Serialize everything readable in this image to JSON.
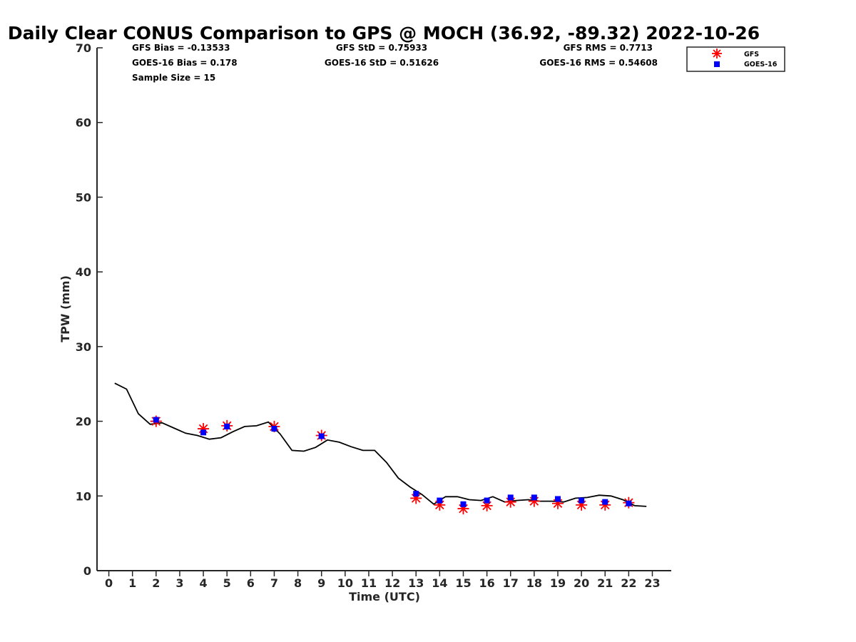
{
  "chart_data": {
    "type": "line",
    "title": "Daily Clear CONUS Comparison to GPS @ MOCH (36.92, -89.32) 2022-10-26",
    "xlabel": "Time (UTC)",
    "ylabel": "TPW (mm)",
    "xlim": [
      -0.5,
      23.8
    ],
    "ylim": [
      0,
      70
    ],
    "xticks": [
      0,
      1,
      2,
      3,
      4,
      5,
      6,
      7,
      8,
      9,
      10,
      11,
      12,
      13,
      14,
      15,
      16,
      17,
      18,
      19,
      20,
      21,
      22,
      23
    ],
    "yticks": [
      0,
      10,
      20,
      30,
      40,
      50,
      60,
      70
    ],
    "grid": false,
    "legend_position": "top-right",
    "stats": {
      "gfs_bias": "GFS Bias = -0.13533",
      "goes_bias": "GOES-16 Bias = 0.178",
      "sample_size": "Sample Size = 15",
      "gfs_std": "GFS StD = 0.75933",
      "goes_std": "GOES-16 StD = 0.51626",
      "gfs_rms": "GFS RMS = 0.7713",
      "goes_rms": "GOES-16 RMS = 0.54608"
    },
    "series": [
      {
        "type": "line",
        "color": "#000000",
        "x": [
          0.25,
          0.75,
          1.25,
          1.75,
          2.25,
          2.75,
          3.25,
          3.75,
          4.25,
          4.75,
          5.25,
          5.75,
          6.25,
          6.75,
          7.25,
          7.75,
          8.25,
          8.75,
          9.25,
          9.75,
          10.25,
          10.75,
          11.25,
          11.75,
          12.25,
          12.75,
          13.25,
          13.75,
          14.25,
          14.75,
          15.25,
          15.75,
          16.25,
          16.75,
          17.25,
          17.75,
          18.25,
          18.75,
          19.25,
          19.75,
          20.25,
          20.75,
          21.25,
          21.75,
          22.25,
          22.75
        ],
        "y": [
          25.1,
          24.3,
          21.0,
          19.6,
          19.8,
          19.1,
          18.4,
          18.1,
          17.6,
          17.8,
          18.6,
          19.3,
          19.4,
          19.9,
          18.3,
          16.1,
          16.0,
          16.5,
          17.5,
          17.2,
          16.6,
          16.1,
          16.1,
          14.5,
          12.4,
          11.2,
          10.2,
          8.9,
          9.9,
          9.9,
          9.5,
          9.4,
          9.9,
          9.2,
          9.4,
          9.5,
          9.3,
          9.3,
          9.2,
          9.7,
          9.8,
          10.1,
          10.0,
          9.5,
          8.7,
          8.6
        ]
      },
      {
        "name": "GFS",
        "type": "scatter",
        "marker": "asterisk",
        "color": "#ff0000",
        "x": [
          2,
          4,
          5,
          7,
          9,
          13,
          14,
          15,
          16,
          17,
          18,
          19,
          20,
          21,
          22
        ],
        "y": [
          20.0,
          19.0,
          19.4,
          19.3,
          18.1,
          9.7,
          8.8,
          8.3,
          8.7,
          9.2,
          9.3,
          9.0,
          8.8,
          8.8,
          9.1
        ]
      },
      {
        "name": "GOES-16",
        "type": "scatter",
        "marker": "square",
        "color": "#0000ff",
        "x": [
          2,
          4,
          5,
          7,
          9,
          13,
          14,
          15,
          16,
          17,
          18,
          19,
          20,
          21,
          22
        ],
        "y": [
          20.2,
          18.5,
          19.3,
          19.0,
          18.0,
          10.3,
          9.4,
          8.9,
          9.4,
          9.8,
          9.8,
          9.6,
          9.4,
          9.2,
          9.0
        ]
      }
    ]
  }
}
